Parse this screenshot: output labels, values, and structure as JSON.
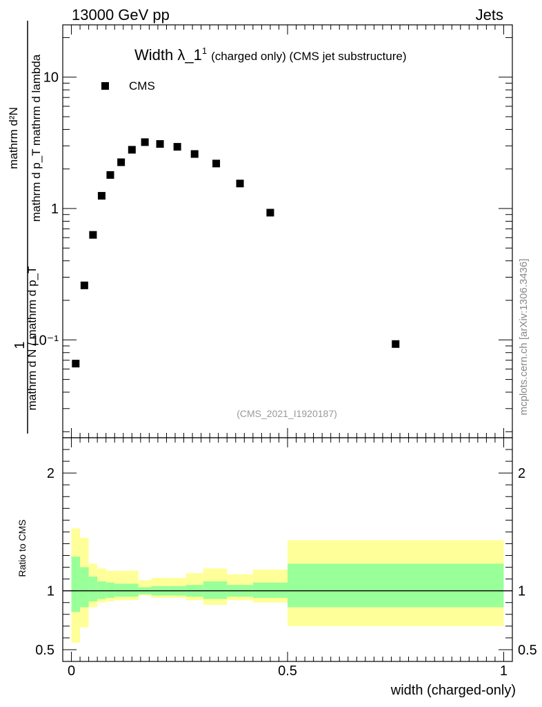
{
  "header": {
    "energy": "13000 GeV pp",
    "process": "Jets",
    "side_credit": "mcplots.cern.ch [arXiv:1306.3436]"
  },
  "chart_data": [
    {
      "type": "scatter",
      "title_main": "Width λ_1",
      "title_sup": "1",
      "title_rest": "(charged only) (CMS jet substructure)",
      "source_label": "(CMS_2021_I1920187)",
      "ylabel": {
        "numerator": "mathrm d²N",
        "denominator": "mathrm d p_T mathrm d lambda",
        "prefix_num": "1",
        "prefix_den": "mathrm d N / mathrm d p_T"
      },
      "yscale": "log",
      "ylim": [
        0.018,
        25
      ],
      "y_ticks": [
        {
          "value": 10,
          "label": "10"
        },
        {
          "value": 1,
          "label": "1"
        },
        {
          "value": 0.1,
          "label": "10⁻¹"
        }
      ],
      "xlim": [
        -0.02,
        1.02
      ],
      "legend": {
        "label": "CMS",
        "position": "top-left"
      },
      "series": [
        {
          "name": "CMS",
          "points": [
            {
              "x": 0.01,
              "y": 0.066
            },
            {
              "x": 0.03,
              "y": 0.26
            },
            {
              "x": 0.05,
              "y": 0.63
            },
            {
              "x": 0.07,
              "y": 1.25
            },
            {
              "x": 0.09,
              "y": 1.8
            },
            {
              "x": 0.115,
              "y": 2.25
            },
            {
              "x": 0.14,
              "y": 2.8
            },
            {
              "x": 0.17,
              "y": 3.2
            },
            {
              "x": 0.205,
              "y": 3.1
            },
            {
              "x": 0.245,
              "y": 2.95
            },
            {
              "x": 0.285,
              "y": 2.6
            },
            {
              "x": 0.335,
              "y": 2.2
            },
            {
              "x": 0.39,
              "y": 1.55
            },
            {
              "x": 0.46,
              "y": 0.93
            },
            {
              "x": 0.75,
              "y": 0.093
            }
          ]
        }
      ]
    },
    {
      "type": "area",
      "ylabel": "Ratio to CMS",
      "xlabel": "width (charged-only)",
      "ylim": [
        0.4,
        2.3
      ],
      "xlim": [
        -0.02,
        1.02
      ],
      "y_ticks": [
        {
          "value": 2,
          "label": "2"
        },
        {
          "value": 1,
          "label": "1"
        },
        {
          "value": 0.5,
          "label": "0.5"
        }
      ],
      "x_ticks": [
        {
          "value": 0,
          "label": "0"
        },
        {
          "value": 0.5,
          "label": "0.5"
        },
        {
          "value": 1,
          "label": "1"
        }
      ],
      "reference_line": 1,
      "bands": [
        {
          "x0": 0.0,
          "x1": 0.02,
          "inner": [
            0.82,
            1.29
          ],
          "outer": [
            0.56,
            1.53
          ]
        },
        {
          "x0": 0.02,
          "x1": 0.04,
          "inner": [
            0.86,
            1.2
          ],
          "outer": [
            0.69,
            1.45
          ]
        },
        {
          "x0": 0.04,
          "x1": 0.06,
          "inner": [
            0.91,
            1.12
          ],
          "outer": [
            0.86,
            1.23
          ]
        },
        {
          "x0": 0.06,
          "x1": 0.08,
          "inner": [
            0.93,
            1.08
          ],
          "outer": [
            0.9,
            1.19
          ]
        },
        {
          "x0": 0.08,
          "x1": 0.1,
          "inner": [
            0.94,
            1.07
          ],
          "outer": [
            0.91,
            1.17
          ]
        },
        {
          "x0": 0.1,
          "x1": 0.155,
          "inner": [
            0.95,
            1.06
          ],
          "outer": [
            0.92,
            1.17
          ]
        },
        {
          "x0": 0.155,
          "x1": 0.185,
          "inner": [
            0.97,
            1.03
          ],
          "outer": [
            0.96,
            1.09
          ]
        },
        {
          "x0": 0.185,
          "x1": 0.225,
          "inner": [
            0.96,
            1.04
          ],
          "outer": [
            0.94,
            1.11
          ]
        },
        {
          "x0": 0.225,
          "x1": 0.265,
          "inner": [
            0.96,
            1.04
          ],
          "outer": [
            0.94,
            1.11
          ]
        },
        {
          "x0": 0.265,
          "x1": 0.305,
          "inner": [
            0.95,
            1.05
          ],
          "outer": [
            0.92,
            1.15
          ]
        },
        {
          "x0": 0.305,
          "x1": 0.36,
          "inner": [
            0.93,
            1.08
          ],
          "outer": [
            0.88,
            1.19
          ]
        },
        {
          "x0": 0.36,
          "x1": 0.42,
          "inner": [
            0.95,
            1.05
          ],
          "outer": [
            0.92,
            1.14
          ]
        },
        {
          "x0": 0.42,
          "x1": 0.5,
          "inner": [
            0.94,
            1.07
          ],
          "outer": [
            0.9,
            1.18
          ]
        },
        {
          "x0": 0.5,
          "x1": 1.0,
          "inner": [
            0.86,
            1.23
          ],
          "outer": [
            0.7,
            1.43
          ]
        }
      ]
    }
  ],
  "colors": {
    "inner_band": "#99ff99",
    "outer_band": "#ffff99",
    "marker": "#000000",
    "axis": "#000000"
  }
}
